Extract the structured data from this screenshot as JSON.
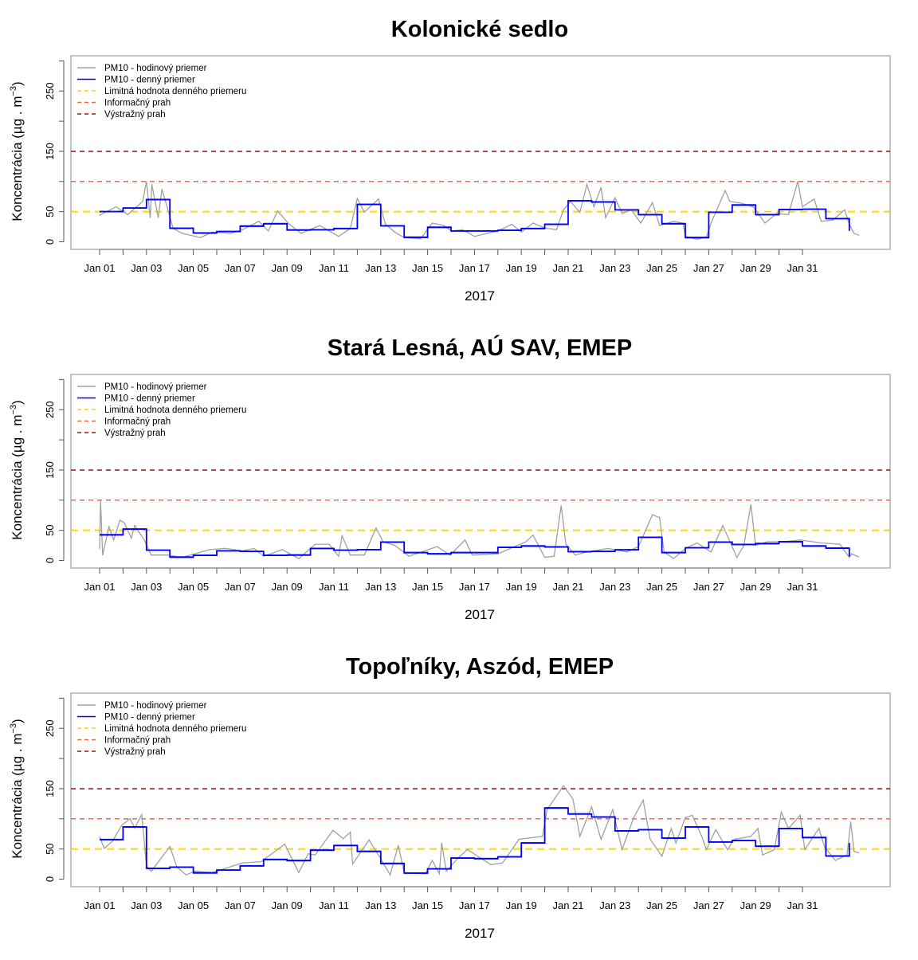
{
  "common": {
    "xlabel": "2017",
    "ylabel": "Koncentrácia (µg . m",
    "ylabel_sup": "−3",
    "ylabel_close": ")",
    "y_ticks": [
      0,
      50,
      100,
      150,
      200,
      250,
      300
    ],
    "y_tick_labels": [
      "0",
      "50",
      "",
      "150",
      "",
      "250",
      ""
    ],
    "ylim": [
      0,
      300
    ],
    "x_unit": "days since Jan 01 2017 00:00",
    "x_ticks_days": 31,
    "x_tick_labels": [
      "Jan 01",
      "Jan 03",
      "Jan 05",
      "Jan 07",
      "Jan 09",
      "Jan 11",
      "Jan 13",
      "Jan 15",
      "Jan 17",
      "Jan 19",
      "Jan 21",
      "Jan 23",
      "Jan 25",
      "Jan 27",
      "Jan 29",
      "Jan 31"
    ],
    "legend": [
      {
        "label": "PM10 - hodinový priemer",
        "color": "#a0a0a0",
        "style": "solid"
      },
      {
        "label": "PM10 - denný priemer",
        "color": "#0000ff",
        "style": "solid"
      },
      {
        "label": "Limitná hodnota denného priemeru",
        "color": "#ffd700",
        "style": "dashed"
      },
      {
        "label": "Informačný prah",
        "color": "#ff6333",
        "style": "dashed"
      },
      {
        "label": "Výstražný prah",
        "color": "#8b1a1a",
        "style": "dashed"
      }
    ],
    "thresholds": [
      {
        "name": "limit",
        "value": 50,
        "color": "#ffd700"
      },
      {
        "name": "information",
        "value": 100,
        "color": "#ff6333"
      },
      {
        "name": "alert",
        "value": 150,
        "color": "#8b1a1a"
      }
    ]
  },
  "chart_data": [
    {
      "type": "line",
      "title": "Kolonické sedlo",
      "legend_position": "top-left",
      "daily_mean": [
        50,
        56,
        70,
        22.5,
        14.6,
        17,
        26,
        30,
        19.5,
        20,
        22,
        62,
        26.5,
        7.5,
        24,
        18,
        18,
        19,
        22,
        29,
        68,
        66,
        53,
        45,
        30,
        7,
        49,
        61,
        45,
        53.5,
        54,
        38.5,
        18
      ],
      "hourly": [
        [
          0,
          44
        ],
        [
          0.7,
          58
        ],
        [
          1.2,
          45
        ],
        [
          1.84,
          67
        ],
        [
          2,
          100
        ],
        [
          2.16,
          40
        ],
        [
          2.23,
          95
        ],
        [
          2.5,
          40
        ],
        [
          2.66,
          87
        ],
        [
          2.88,
          58
        ],
        [
          3.14,
          22
        ],
        [
          3.53,
          14
        ],
        [
          4.3,
          7
        ],
        [
          4.8,
          16
        ],
        [
          5.6,
          14
        ],
        [
          6.1,
          20
        ],
        [
          6.8,
          34
        ],
        [
          7.2,
          18
        ],
        [
          7.6,
          51
        ],
        [
          8.1,
          29
        ],
        [
          8.6,
          14
        ],
        [
          9.4,
          27
        ],
        [
          10.2,
          9
        ],
        [
          10.7,
          22
        ],
        [
          11,
          72
        ],
        [
          11.3,
          49
        ],
        [
          11.9,
          71
        ],
        [
          12.2,
          29
        ],
        [
          12.6,
          16
        ],
        [
          13,
          7
        ],
        [
          13.7,
          5
        ],
        [
          14.2,
          31
        ],
        [
          14.7,
          27
        ],
        [
          15,
          18
        ],
        [
          15.5,
          20
        ],
        [
          16,
          9
        ],
        [
          17,
          18
        ],
        [
          17.6,
          29
        ],
        [
          18,
          16
        ],
        [
          18.5,
          31
        ],
        [
          19,
          23
        ],
        [
          19.5,
          20
        ],
        [
          19.8,
          53
        ],
        [
          20.1,
          67
        ],
        [
          20.5,
          49
        ],
        [
          20.8,
          95
        ],
        [
          21.1,
          58
        ],
        [
          21.4,
          90
        ],
        [
          21.6,
          40
        ],
        [
          22,
          73
        ],
        [
          22.3,
          47
        ],
        [
          22.7,
          53
        ],
        [
          23.1,
          31
        ],
        [
          23.6,
          65
        ],
        [
          23.9,
          27
        ],
        [
          24.5,
          34
        ],
        [
          24.9,
          31
        ],
        [
          25,
          9
        ],
        [
          25.5,
          4
        ],
        [
          25.9,
          8
        ],
        [
          26.1,
          31
        ],
        [
          26.7,
          85
        ],
        [
          26.9,
          67
        ],
        [
          27.4,
          64
        ],
        [
          27.9,
          58
        ],
        [
          28.4,
          31
        ],
        [
          28.9,
          47
        ],
        [
          29.4,
          45
        ],
        [
          29.8,
          100
        ],
        [
          30,
          58
        ],
        [
          30.5,
          71
        ],
        [
          30.8,
          34
        ],
        [
          31.3,
          36
        ],
        [
          31.8,
          53
        ],
        [
          32,
          29
        ],
        [
          32.2,
          14
        ],
        [
          32.4,
          11
        ]
      ]
    },
    {
      "type": "line",
      "title": "Stará Lesná, AÚ SAV, EMEP",
      "legend_position": "top-left",
      "daily_mean": [
        42.5,
        52,
        17,
        5.5,
        8.5,
        16,
        15,
        8.5,
        9,
        20,
        17,
        18,
        30.5,
        13,
        11,
        13,
        13,
        21.7,
        24,
        22.5,
        14.6,
        15,
        17.7,
        38.5,
        13,
        21,
        30.5,
        26.5,
        28,
        31,
        24,
        20.4,
        7
      ],
      "hourly": [
        [
          0,
          20
        ],
        [
          0.04,
          99
        ],
        [
          0.13,
          9
        ],
        [
          0.4,
          56
        ],
        [
          0.6,
          34
        ],
        [
          0.87,
          67
        ],
        [
          1.06,
          62
        ],
        [
          1.35,
          37
        ],
        [
          1.5,
          58
        ],
        [
          1.9,
          34
        ],
        [
          2.2,
          9
        ],
        [
          2.9,
          9
        ],
        [
          3.5,
          5
        ],
        [
          4.7,
          18
        ],
        [
          5.35,
          20
        ],
        [
          6.1,
          16
        ],
        [
          6.6,
          20
        ],
        [
          7,
          7
        ],
        [
          7.8,
          18
        ],
        [
          8.5,
          3
        ],
        [
          9.2,
          27
        ],
        [
          9.8,
          27
        ],
        [
          10.2,
          7
        ],
        [
          10.35,
          41
        ],
        [
          10.7,
          9
        ],
        [
          11.3,
          9
        ],
        [
          11.8,
          54
        ],
        [
          12.1,
          31
        ],
        [
          12.6,
          25
        ],
        [
          13.2,
          7
        ],
        [
          14.4,
          23
        ],
        [
          14.96,
          9
        ],
        [
          15.6,
          34
        ],
        [
          15.9,
          9
        ],
        [
          17,
          11
        ],
        [
          18.2,
          31
        ],
        [
          18.5,
          42
        ],
        [
          19,
          5
        ],
        [
          19.4,
          7
        ],
        [
          19.7,
          91
        ],
        [
          19.9,
          27
        ],
        [
          20.3,
          9
        ],
        [
          20.8,
          14
        ],
        [
          21.7,
          20
        ],
        [
          22.5,
          14
        ],
        [
          23,
          23
        ],
        [
          23.6,
          76
        ],
        [
          23.9,
          71
        ],
        [
          24.1,
          14
        ],
        [
          24.5,
          3
        ],
        [
          25,
          20
        ],
        [
          25.5,
          29
        ],
        [
          26.1,
          14
        ],
        [
          26.6,
          58
        ],
        [
          27.2,
          5
        ],
        [
          27.5,
          25
        ],
        [
          27.8,
          93
        ],
        [
          28,
          25
        ],
        [
          28.5,
          31
        ],
        [
          29.2,
          31
        ],
        [
          29.9,
          34
        ],
        [
          30.8,
          29
        ],
        [
          31.6,
          27
        ],
        [
          32,
          5
        ],
        [
          32.1,
          11
        ],
        [
          32.4,
          6
        ]
      ]
    },
    {
      "type": "line",
      "title": "Topoľníky, Aszód, EMEP",
      "legend_position": "top-left",
      "daily_mean": [
        65.6,
        86.6,
        17.9,
        20,
        10.3,
        15,
        22,
        32.6,
        30.8,
        48,
        55.8,
        46,
        26,
        10,
        17,
        35,
        34,
        37,
        60,
        118,
        108,
        103,
        80,
        82,
        68,
        86.6,
        61.6,
        64,
        54.5,
        84,
        69,
        38.4,
        60
      ],
      "hourly": [
        [
          0,
          70
        ],
        [
          0.2,
          51
        ],
        [
          0.55,
          63
        ],
        [
          0.94,
          89
        ],
        [
          1.3,
          100
        ],
        [
          1.5,
          85
        ],
        [
          1.8,
          107
        ],
        [
          2,
          22
        ],
        [
          2.2,
          13
        ],
        [
          3,
          54
        ],
        [
          3.3,
          20
        ],
        [
          3.7,
          7
        ],
        [
          4.05,
          13
        ],
        [
          4.8,
          11
        ],
        [
          6.1,
          27
        ],
        [
          6.9,
          29
        ],
        [
          7.9,
          58
        ],
        [
          8.5,
          11
        ],
        [
          8.9,
          42
        ],
        [
          9.2,
          40
        ],
        [
          9.96,
          81
        ],
        [
          10.4,
          67
        ],
        [
          10.7,
          78
        ],
        [
          10.8,
          25
        ],
        [
          11.5,
          65
        ],
        [
          11.9,
          40
        ],
        [
          12.4,
          7
        ],
        [
          12.75,
          56
        ],
        [
          13,
          11
        ],
        [
          13.9,
          9
        ],
        [
          14.2,
          31
        ],
        [
          14.5,
          9
        ],
        [
          14.6,
          60
        ],
        [
          14.8,
          13
        ],
        [
          15.3,
          35
        ],
        [
          15.7,
          49
        ],
        [
          16.7,
          24
        ],
        [
          17.2,
          27
        ],
        [
          17.9,
          66
        ],
        [
          18.9,
          71
        ],
        [
          19.1,
          115
        ],
        [
          19.8,
          155
        ],
        [
          20.2,
          133
        ],
        [
          20.5,
          71
        ],
        [
          21,
          120
        ],
        [
          21.4,
          66
        ],
        [
          21.9,
          115
        ],
        [
          22.3,
          49
        ],
        [
          22.8,
          102
        ],
        [
          23.2,
          131
        ],
        [
          23.5,
          66
        ],
        [
          24,
          38
        ],
        [
          24.4,
          84
        ],
        [
          24.6,
          60
        ],
        [
          25,
          102
        ],
        [
          25.3,
          106
        ],
        [
          25.7,
          71
        ],
        [
          25.9,
          49
        ],
        [
          26.3,
          82
        ],
        [
          26.8,
          49
        ],
        [
          27.1,
          66
        ],
        [
          27.8,
          71
        ],
        [
          28.1,
          84
        ],
        [
          28.3,
          40
        ],
        [
          28.8,
          49
        ],
        [
          29.1,
          111
        ],
        [
          29.4,
          84
        ],
        [
          29.9,
          106
        ],
        [
          30.1,
          49
        ],
        [
          30.7,
          84
        ],
        [
          30.95,
          53
        ],
        [
          31.4,
          31
        ],
        [
          31.9,
          40
        ],
        [
          32.06,
          95
        ],
        [
          32.2,
          46
        ],
        [
          32.4,
          44
        ]
      ]
    }
  ]
}
